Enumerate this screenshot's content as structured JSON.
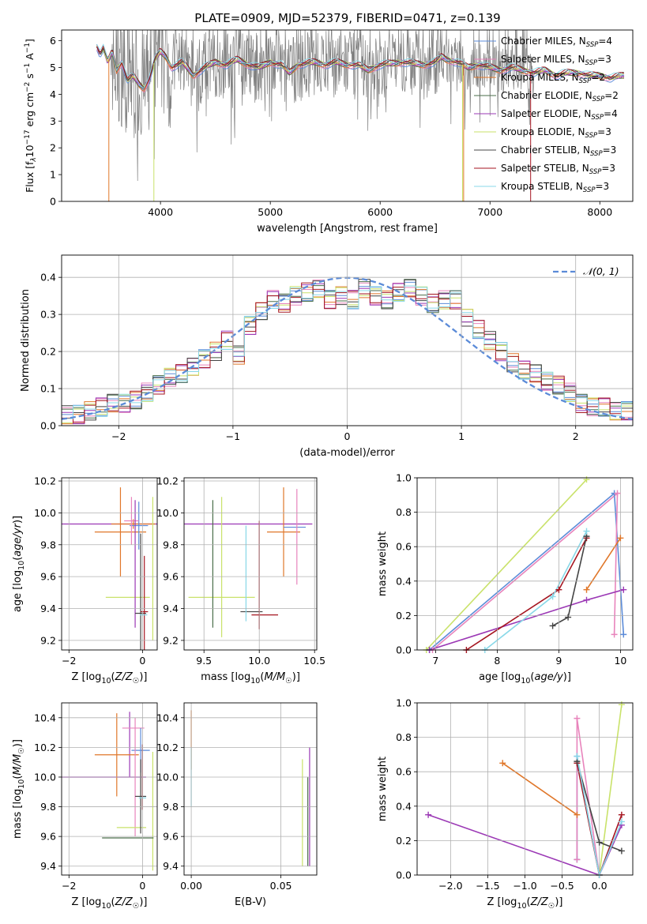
{
  "figure": {
    "title": "PLATE=0909, MJD=52379, FIBERID=0471, z=0.139"
  },
  "colors": {
    "chabrier_miles": "#5b8bd8",
    "salpeter_miles": "#e884bc",
    "kroupa_miles": "#e0772a",
    "chabrier_elodie": "#4a6e4a",
    "salpeter_elodie": "#9b38b5",
    "kroupa_elodie": "#c9e26a",
    "chabrier_stelib": "#444444",
    "salpeter_stelib": "#a51520",
    "kroupa_stelib": "#88d8e8",
    "data": "#808080",
    "gauss": "#5b8bd8",
    "grid": "#b0b0b0"
  },
  "chart_data": [
    {
      "id": "spectrum",
      "type": "line",
      "xlabel": "wavelength [Angstrom, rest frame]",
      "ylabel": "Flux [f_λ 10^-17 erg cm^-2 s^-1 A^-1]",
      "xlim": [
        3100,
        8300
      ],
      "ylim": [
        0,
        6.4
      ],
      "xticks": [
        "4000",
        "5000",
        "6000",
        "7000",
        "8000"
      ],
      "yticks": [
        "0",
        "1",
        "2",
        "3",
        "4",
        "5",
        "6"
      ],
      "legend_position": "upper-right",
      "legend": [
        {
          "label": "Chabrier MILES, N",
          "sub": "SSP",
          "suffix": "=4",
          "color": "chabrier_miles"
        },
        {
          "label": "Salpeter MILES, N",
          "sub": "SSP",
          "suffix": "=3",
          "color": "salpeter_miles"
        },
        {
          "label": "Kroupa MILES, N",
          "sub": "SSP",
          "suffix": "=2",
          "color": "kroupa_miles"
        },
        {
          "label": "Chabrier ELODIE, N",
          "sub": "SSP",
          "suffix": "=2",
          "color": "chabrier_elodie"
        },
        {
          "label": "Salpeter ELODIE, N",
          "sub": "SSP",
          "suffix": "=4",
          "color": "salpeter_elodie"
        },
        {
          "label": "Kroupa ELODIE, N",
          "sub": "SSP",
          "suffix": "=3",
          "color": "kroupa_elodie"
        },
        {
          "label": "Chabrier STELIB, N",
          "sub": "SSP",
          "suffix": "=3",
          "color": "chabrier_stelib"
        },
        {
          "label": "Salpeter STELIB, N",
          "sub": "SSP",
          "suffix": "=3",
          "color": "salpeter_stelib"
        },
        {
          "label": "Kroupa STELIB, N",
          "sub": "SSP",
          "suffix": "=3",
          "color": "kroupa_stelib"
        }
      ],
      "model_curve": [
        [
          3420,
          5.8
        ],
        [
          3450,
          5.5
        ],
        [
          3480,
          5.7
        ],
        [
          3520,
          5.2
        ],
        [
          3560,
          5.6
        ],
        [
          3600,
          4.9
        ],
        [
          3650,
          5.2
        ],
        [
          3700,
          4.5
        ],
        [
          3750,
          4.7
        ],
        [
          3800,
          4.4
        ],
        [
          3850,
          4.2
        ],
        [
          3900,
          4.6
        ],
        [
          3950,
          5.3
        ],
        [
          4000,
          5.6
        ],
        [
          4050,
          5.4
        ],
        [
          4100,
          5.0
        ],
        [
          4200,
          5.2
        ],
        [
          4300,
          4.7
        ],
        [
          4400,
          5.0
        ],
        [
          4500,
          5.2
        ],
        [
          4600,
          5.1
        ],
        [
          4700,
          5.3
        ],
        [
          4800,
          5.1
        ],
        [
          4900,
          5.0
        ],
        [
          5000,
          5.2
        ],
        [
          5100,
          5.1
        ],
        [
          5175,
          4.8
        ],
        [
          5250,
          5.1
        ],
        [
          5400,
          5.2
        ],
        [
          5500,
          5.1
        ],
        [
          5600,
          5.2
        ],
        [
          5700,
          5.1
        ],
        [
          5800,
          5.1
        ],
        [
          5890,
          4.9
        ],
        [
          6000,
          5.1
        ],
        [
          6200,
          5.2
        ],
        [
          6400,
          5.1
        ],
        [
          6500,
          5.2
        ],
        [
          6560,
          5.4
        ],
        [
          6600,
          5.3
        ],
        [
          6700,
          5.2
        ],
        [
          6800,
          5.0
        ],
        [
          6900,
          5.1
        ],
        [
          7000,
          5.0
        ],
        [
          7100,
          4.9
        ],
        [
          7200,
          5.0
        ],
        [
          7300,
          4.9
        ],
        [
          7400,
          4.8
        ],
        [
          7500,
          4.9
        ],
        [
          7600,
          4.7
        ],
        [
          7700,
          4.8
        ],
        [
          7800,
          4.8
        ],
        [
          7900,
          4.7
        ],
        [
          8000,
          4.7
        ],
        [
          8100,
          4.6
        ],
        [
          8200,
          4.7
        ]
      ],
      "drops": [
        {
          "x": 3530,
          "color": "kroupa_miles"
        },
        {
          "x": 3940,
          "color": "kroupa_elodie"
        },
        {
          "x": 6750,
          "color": "kroupa_elodie"
        },
        {
          "x": 6760,
          "color": "kroupa_miles"
        },
        {
          "x": 7370,
          "color": "salpeter_stelib"
        }
      ],
      "data_note": "gray observed spectrum, noisy between 3550 and 7400"
    },
    {
      "id": "residuals",
      "type": "histogram",
      "xlabel": "(data-model)/error",
      "ylabel": "Normed distribution",
      "xlim": [
        -2.5,
        2.5
      ],
      "ylim": [
        0,
        0.46
      ],
      "xticks": [
        "−2",
        "−1",
        "0",
        "1",
        "2"
      ],
      "yticks": [
        "0.0",
        "0.1",
        "0.2",
        "0.3",
        "0.4"
      ],
      "legend_label": "𝒩(0, 1)",
      "legend_position": "upper-right",
      "bin_width": 0.1,
      "base_heights": [
        0.03,
        0.03,
        0.04,
        0.05,
        0.06,
        0.06,
        0.07,
        0.09,
        0.11,
        0.13,
        0.14,
        0.16,
        0.18,
        0.2,
        0.23,
        0.19,
        0.27,
        0.31,
        0.34,
        0.33,
        0.35,
        0.36,
        0.37,
        0.34,
        0.35,
        0.34,
        0.37,
        0.35,
        0.34,
        0.36,
        0.37,
        0.35,
        0.33,
        0.34,
        0.34,
        0.29,
        0.26,
        0.23,
        0.2,
        0.17,
        0.15,
        0.14,
        0.12,
        0.11,
        0.09,
        0.06,
        0.05,
        0.05,
        0.04,
        0.04
      ]
    },
    {
      "id": "z-age",
      "type": "errorbar",
      "xlabel": "Z [log10(Z/Z☉)]",
      "ylabel": "age [log10(age/yr)]",
      "xlim": [
        -2.2,
        0.4
      ],
      "ylim": [
        9.14,
        10.22
      ],
      "xticks": [
        "−2",
        "0"
      ],
      "yticks": [
        "9.2",
        "9.4",
        "9.6",
        "9.8",
        "10.0",
        "10.2"
      ],
      "points": [
        {
          "x": -0.35,
          "y": 9.93,
          "xerr": 1.95,
          "yerr": 0.0,
          "color": "salpeter_elodie"
        },
        {
          "x": -0.25,
          "y": 9.93,
          "xerr": 0.6,
          "yerr": 0.03,
          "color": "kroupa_miles"
        },
        {
          "x": -0.6,
          "y": 9.88,
          "xerr": 0.7,
          "yerr": 0.28,
          "color": "kroupa_miles"
        },
        {
          "x": -0.1,
          "y": 9.92,
          "xerr": 0.25,
          "yerr": 0.15,
          "color": "chabrier_miles"
        },
        {
          "x": -0.3,
          "y": 9.95,
          "xerr": 0.2,
          "yerr": 0.15,
          "color": "salpeter_miles"
        },
        {
          "x": 0.28,
          "y": 9.65,
          "xerr": 0.0,
          "yerr": 0.45,
          "color": "kroupa_elodie"
        },
        {
          "x": -0.4,
          "y": 9.47,
          "xerr": 0.6,
          "yerr": 0.0,
          "color": "kroupa_elodie"
        },
        {
          "x": -0.2,
          "y": 9.68,
          "xerr": 0.0,
          "yerr": 0.4,
          "color": "salpeter_elodie"
        },
        {
          "x": -0.05,
          "y": 9.37,
          "xerr": 0.15,
          "yerr": 0.5,
          "color": "chabrier_stelib"
        },
        {
          "x": 0.05,
          "y": 9.38,
          "xerr": 0.1,
          "yerr": 0.35,
          "color": "salpeter_stelib"
        },
        {
          "x": 0.03,
          "y": 9.36,
          "xerr": 0.1,
          "yerr": 0.0,
          "color": "kroupa_stelib"
        }
      ]
    },
    {
      "id": "mass-age",
      "type": "errorbar",
      "xlabel": "mass [log10(M/M☉)]",
      "ylabel": "",
      "xlim": [
        9.32,
        10.52
      ],
      "ylim": [
        9.14,
        10.22
      ],
      "xticks": [
        "9.5",
        "10.0",
        "10.5"
      ],
      "yticks": [
        "9.2",
        "9.4",
        "9.6",
        "9.8",
        "10.0",
        "10.2"
      ],
      "points": [
        {
          "x": 9.88,
          "y": 9.93,
          "xerr": 0.6,
          "yerr": 0.0,
          "color": "salpeter_elodie"
        },
        {
          "x": 10.22,
          "y": 9.88,
          "xerr": 0.15,
          "yerr": 0.28,
          "color": "kroupa_miles"
        },
        {
          "x": 10.32,
          "y": 9.91,
          "xerr": 0.1,
          "yerr": 0.0,
          "color": "chabrier_miles"
        },
        {
          "x": 10.34,
          "y": 9.85,
          "xerr": 0.0,
          "yerr": 0.3,
          "color": "salpeter_miles"
        },
        {
          "x": 9.66,
          "y": 9.66,
          "xerr": 0.0,
          "yerr": 0.44,
          "color": "kroupa_elodie"
        },
        {
          "x": 9.66,
          "y": 9.47,
          "xerr": 0.3,
          "yerr": 0.0,
          "color": "kroupa_elodie"
        },
        {
          "x": 9.58,
          "y": 9.68,
          "xerr": 0.0,
          "yerr": 0.4,
          "color": "chabrier_elodie"
        },
        {
          "x": 9.93,
          "y": 9.38,
          "xerr": 0.1,
          "yerr": 0.0,
          "color": "chabrier_stelib"
        },
        {
          "x": 10.0,
          "y": 9.61,
          "xerr": 0.0,
          "yerr": 0.34,
          "color": "salpeter_stelib"
        },
        {
          "x": 10.05,
          "y": 9.36,
          "xerr": 0.12,
          "yerr": 0.0,
          "color": "salpeter_stelib"
        },
        {
          "x": 9.88,
          "y": 9.62,
          "xerr": 0.0,
          "yerr": 0.3,
          "color": "kroupa_stelib"
        }
      ]
    },
    {
      "id": "age-weight",
      "type": "line",
      "xlabel": "age [log10(age/yr)]",
      "ylabel": "mass weight",
      "xlim": [
        6.7,
        10.2
      ],
      "ylim": [
        0,
        1.0
      ],
      "xticks": [
        "7",
        "8",
        "9",
        "10"
      ],
      "yticks": [
        "0.0",
        "0.2",
        "0.4",
        "0.6",
        "0.8",
        "1.0"
      ],
      "series": [
        {
          "color": "kroupa_elodie",
          "x": [
            6.85,
            9.45
          ],
          "y": [
            0.0,
            0.99
          ]
        },
        {
          "color": "chabrier_miles",
          "x": [
            6.9,
            9.9,
            10.05
          ],
          "y": [
            0.0,
            0.91,
            0.09
          ]
        },
        {
          "color": "salpeter_miles",
          "x": [
            9.9,
            9.95,
            6.95
          ],
          "y": [
            0.09,
            0.91,
            0.0
          ]
        },
        {
          "color": "kroupa_miles",
          "x": [
            9.45,
            10.0
          ],
          "y": [
            0.35,
            0.65
          ]
        },
        {
          "color": "salpeter_elodie",
          "x": [
            6.9,
            9.45,
            10.05
          ],
          "y": [
            0.0,
            0.29,
            0.35
          ]
        },
        {
          "color": "salpeter_stelib",
          "x": [
            7.5,
            9.0,
            9.45
          ],
          "y": [
            0.0,
            0.35,
            0.65
          ]
        },
        {
          "color": "chabrier_stelib",
          "x": [
            8.9,
            9.15,
            9.45
          ],
          "y": [
            0.14,
            0.19,
            0.66
          ]
        },
        {
          "color": "kroupa_stelib",
          "x": [
            7.8,
            8.9,
            9.45
          ],
          "y": [
            0.0,
            0.31,
            0.69
          ]
        }
      ]
    },
    {
      "id": "z-mass",
      "type": "errorbar",
      "xlabel": "Z [log10(Z/Z☉)]",
      "ylabel": "mass [log10(M/M☉)]",
      "xlim": [
        -2.2,
        0.4
      ],
      "ylim": [
        9.34,
        10.5
      ],
      "xticks": [
        "−2",
        "0"
      ],
      "yticks": [
        "9.4",
        "9.6",
        "9.8",
        "10.0",
        "10.2",
        "10.4"
      ],
      "points": [
        {
          "x": -1.05,
          "y": 10.0,
          "xerr": 1.15,
          "yerr": 0.0,
          "color": "salpeter_elodie"
        },
        {
          "x": -0.35,
          "y": 10.22,
          "xerr": 0.0,
          "yerr": 0.22,
          "color": "salpeter_elodie"
        },
        {
          "x": -0.7,
          "y": 10.15,
          "xerr": 0.6,
          "yerr": 0.28,
          "color": "kroupa_miles"
        },
        {
          "x": -0.25,
          "y": 10.33,
          "xerr": 0.3,
          "yerr": 0.0,
          "color": "salpeter_miles"
        },
        {
          "x": -0.05,
          "y": 10.18,
          "xerr": 0.25,
          "yerr": 0.15,
          "color": "chabrier_miles"
        },
        {
          "x": -0.2,
          "y": 10.0,
          "xerr": 0.0,
          "yerr": 0.4,
          "color": "salpeter_miles"
        },
        {
          "x": 0.28,
          "y": 9.77,
          "xerr": 0.0,
          "yerr": 0.4,
          "color": "kroupa_elodie"
        },
        {
          "x": -0.3,
          "y": 9.66,
          "xerr": 0.4,
          "yerr": 0.0,
          "color": "kroupa_elodie"
        },
        {
          "x": -0.4,
          "y": 9.59,
          "xerr": 0.7,
          "yerr": 0.0,
          "color": "chabrier_elodie"
        },
        {
          "x": -0.05,
          "y": 9.87,
          "xerr": 0.15,
          "yerr": 0.25,
          "color": "chabrier_stelib"
        },
        {
          "x": 0.0,
          "y": 10.0,
          "xerr": 0.0,
          "yerr": 0.22,
          "color": "salpeter_stelib"
        },
        {
          "x": 0.0,
          "y": 9.86,
          "xerr": 0.1,
          "yerr": 0.0,
          "color": "kroupa_stelib"
        }
      ]
    },
    {
      "id": "ebv-mass",
      "type": "errorbar",
      "xlabel": "E(B-V)",
      "ylabel": "",
      "xlim": [
        -0.004,
        0.07
      ],
      "ylim": [
        9.34,
        10.5
      ],
      "xticks": [
        "0.00",
        "0.05"
      ],
      "yticks": [
        "9.4",
        "9.6",
        "9.8",
        "10.0",
        "10.2",
        "10.4"
      ],
      "points": [
        {
          "x": 0.0,
          "y": 10.25,
          "xerr": 0.0,
          "yerr": 0.2,
          "color": "kroupa_miles"
        },
        {
          "x": 0.0,
          "y": 10.0,
          "xerr": 0.0,
          "yerr": 0.2,
          "color": "kroupa_stelib"
        },
        {
          "x": 0.062,
          "y": 9.76,
          "xerr": 0.0,
          "yerr": 0.36,
          "color": "kroupa_elodie"
        },
        {
          "x": 0.066,
          "y": 9.8,
          "xerr": 0.0,
          "yerr": 0.4,
          "color": "salpeter_elodie"
        },
        {
          "x": 0.065,
          "y": 9.7,
          "xerr": 0.0,
          "yerr": 0.3,
          "color": "chabrier_elodie"
        }
      ]
    },
    {
      "id": "z-weight",
      "type": "line",
      "xlabel": "Z [log10(Z/Z☉)]",
      "ylabel": "mass weight",
      "xlim": [
        -2.45,
        0.45
      ],
      "ylim": [
        0,
        1.0
      ],
      "xticks": [
        "−2.0",
        "−1.5",
        "−1.0",
        "−0.5",
        "0.0"
      ],
      "yticks": [
        "0.0",
        "0.2",
        "0.4",
        "0.6",
        "0.8",
        "1.0"
      ],
      "series": [
        {
          "color": "salpeter_elodie",
          "x": [
            -2.3,
            0.0,
            0.3
          ],
          "y": [
            0.35,
            0.0,
            0.29
          ]
        },
        {
          "color": "kroupa_miles",
          "x": [
            -1.3,
            -0.3
          ],
          "y": [
            0.65,
            0.35
          ]
        },
        {
          "color": "chabrier_miles",
          "x": [
            -0.3,
            -0.3,
            0.0
          ],
          "y": [
            0.09,
            0.69,
            0.0
          ]
        },
        {
          "color": "salpeter_miles",
          "x": [
            -0.3,
            -0.3,
            0.0
          ],
          "y": [
            0.09,
            0.91,
            0.0
          ]
        },
        {
          "color": "kroupa_elodie",
          "x": [
            0.0,
            0.3
          ],
          "y": [
            0.0,
            0.99
          ]
        },
        {
          "color": "salpeter_stelib",
          "x": [
            -0.3,
            0.0,
            0.3
          ],
          "y": [
            0.65,
            0.0,
            0.35
          ]
        },
        {
          "color": "chabrier_stelib",
          "x": [
            -0.3,
            0.0,
            0.3
          ],
          "y": [
            0.66,
            0.19,
            0.14
          ]
        },
        {
          "color": "kroupa_stelib",
          "x": [
            -0.3,
            0.0,
            0.3
          ],
          "y": [
            0.69,
            0.0,
            0.31
          ]
        }
      ]
    }
  ]
}
